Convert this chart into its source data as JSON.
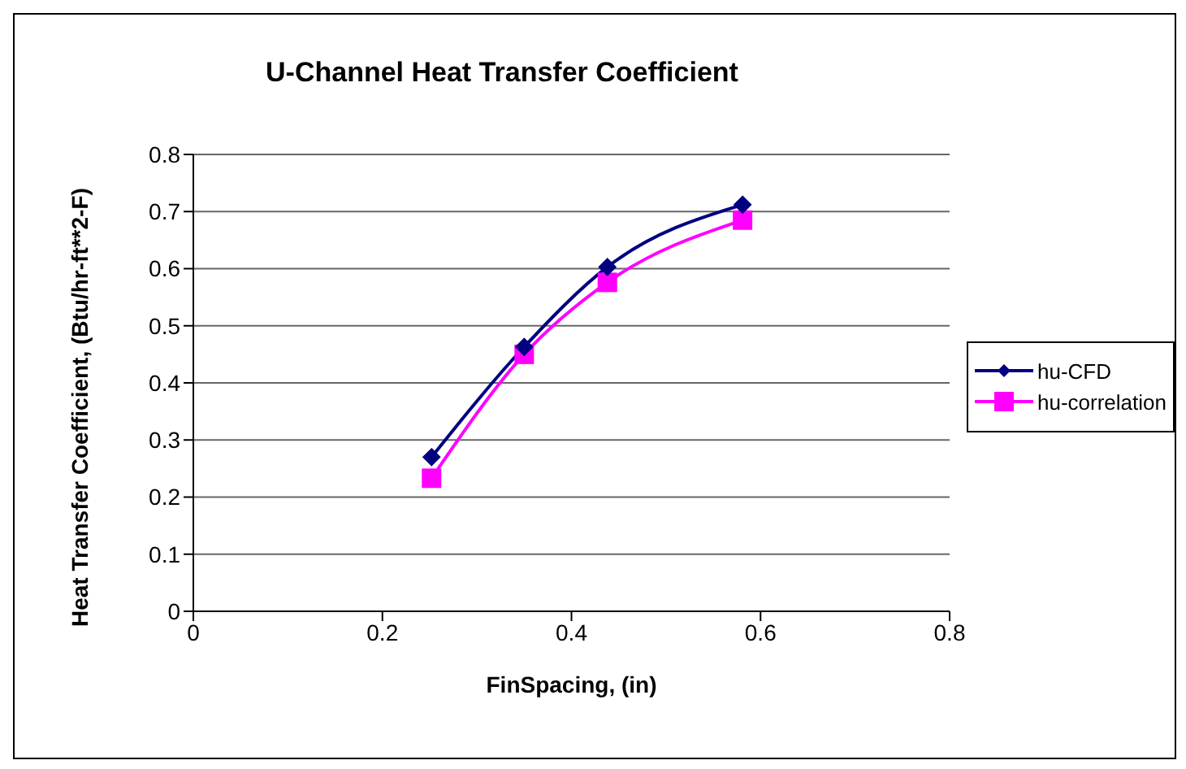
{
  "chart_data": {
    "type": "line",
    "title": "U-Channel Heat Transfer Coefficient",
    "xlabel": "FinSpacing, (in)",
    "ylabel": "Heat Transfer Coefficient, (Btu/hr-ft**2-F)",
    "x": [
      0.252,
      0.35,
      0.438,
      0.581
    ],
    "series": [
      {
        "name": "hu-CFD",
        "color": "#000080",
        "marker": "diamond",
        "values": [
          0.27,
          0.463,
          0.603,
          0.712
        ]
      },
      {
        "name": "hu-correlation",
        "color": "#ff00ff",
        "marker": "square",
        "values": [
          0.233,
          0.45,
          0.576,
          0.685
        ]
      }
    ],
    "xlim": [
      0,
      0.8
    ],
    "xticks": [
      0,
      0.2,
      0.4,
      0.6,
      0.8
    ],
    "ylim": [
      0,
      0.8
    ],
    "yticks": [
      0,
      0.1,
      0.2,
      0.3,
      0.4,
      0.5,
      0.6,
      0.7,
      0.8
    ],
    "grid": "y",
    "legend": "right"
  }
}
